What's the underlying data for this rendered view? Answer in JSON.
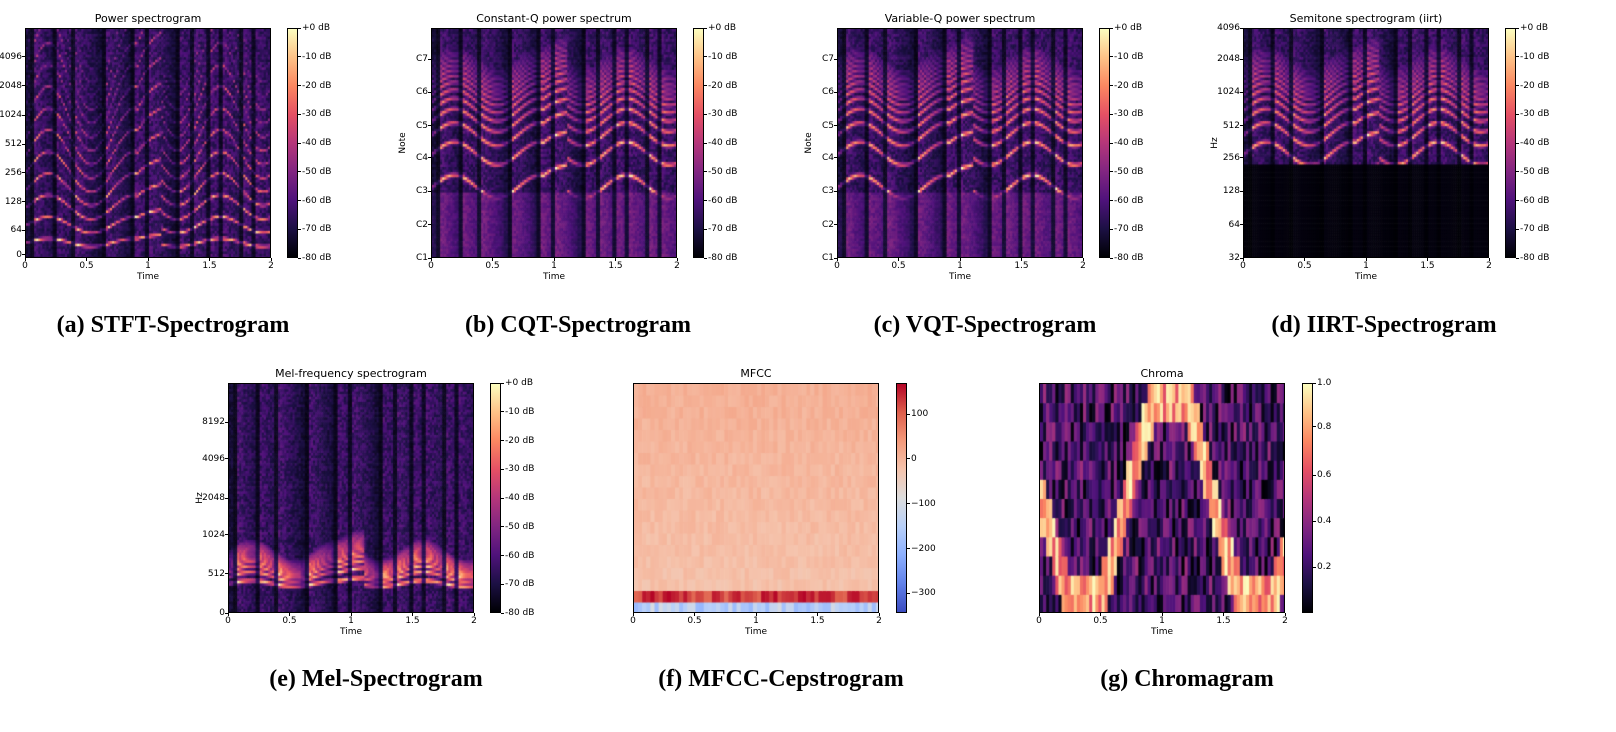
{
  "chart_data": [
    {
      "id": "a",
      "type": "heatmap",
      "title": "Power spectrogram",
      "xlabel": "Time",
      "ylabel": "",
      "xticks": [
        "0",
        "0.5",
        "1",
        "1.5",
        "2"
      ],
      "yticks": [
        "0",
        "64",
        "128",
        "256",
        "512",
        "1024",
        "2048",
        "4096"
      ],
      "colorbar": {
        "colormap": "magma",
        "ticks": [
          "+0 dB",
          "-10 dB",
          "-20 dB",
          "-30 dB",
          "-40 dB",
          "-50 dB",
          "-60 dB",
          "-70 dB",
          "-80 dB"
        ]
      },
      "caption": "(a) STFT-Spectrogram"
    },
    {
      "id": "b",
      "type": "heatmap",
      "title": "Constant-Q power spectrum",
      "xlabel": "Time",
      "ylabel": "Note",
      "xticks": [
        "0",
        "0.5",
        "1",
        "1.5",
        "2"
      ],
      "yticks": [
        "C1",
        "C2",
        "C3",
        "C4",
        "C5",
        "C6",
        "C7"
      ],
      "colorbar": {
        "colormap": "magma",
        "ticks": [
          "+0 dB",
          "-10 dB",
          "-20 dB",
          "-30 dB",
          "-40 dB",
          "-50 dB",
          "-60 dB",
          "-70 dB",
          "-80 dB"
        ]
      },
      "caption": "(b) CQT-Spectrogram"
    },
    {
      "id": "c",
      "type": "heatmap",
      "title": "Variable-Q power spectrum",
      "xlabel": "Time",
      "ylabel": "Note",
      "xticks": [
        "0",
        "0.5",
        "1",
        "1.5",
        "2"
      ],
      "yticks": [
        "C1",
        "C2",
        "C3",
        "C4",
        "C5",
        "C6",
        "C7"
      ],
      "colorbar": {
        "colormap": "magma",
        "ticks": [
          "+0 dB",
          "-10 dB",
          "-20 dB",
          "-30 dB",
          "-40 dB",
          "-50 dB",
          "-60 dB",
          "-70 dB",
          "-80 dB"
        ]
      },
      "caption": "(c) VQT-Spectrogram"
    },
    {
      "id": "d",
      "type": "heatmap",
      "title": "Semitone spectrogram (iirt)",
      "xlabel": "Time",
      "ylabel": "Hz",
      "xticks": [
        "0",
        "0.5",
        "1",
        "1.5",
        "2"
      ],
      "yticks": [
        "32",
        "64",
        "128",
        "256",
        "512",
        "1024",
        "2048",
        "4096"
      ],
      "colorbar": {
        "colormap": "magma",
        "ticks": [
          "+0 dB",
          "-10 dB",
          "-20 dB",
          "-30 dB",
          "-40 dB",
          "-50 dB",
          "-60 dB",
          "-70 dB",
          "-80 dB"
        ]
      },
      "caption": "(d) IIRT-Spectrogram"
    },
    {
      "id": "e",
      "type": "heatmap",
      "title": "Mel-frequency spectrogram",
      "xlabel": "Time",
      "ylabel": "Hz",
      "xticks": [
        "0",
        "0.5",
        "1",
        "1.5",
        "2"
      ],
      "yticks": [
        "0",
        "512",
        "1024",
        "2048",
        "4096",
        "8192"
      ],
      "colorbar": {
        "colormap": "magma",
        "ticks": [
          "+0 dB",
          "-10 dB",
          "-20 dB",
          "-30 dB",
          "-40 dB",
          "-50 dB",
          "-60 dB",
          "-70 dB",
          "-80 dB"
        ]
      },
      "caption": "(e) Mel-Spectrogram"
    },
    {
      "id": "f",
      "type": "heatmap",
      "title": "MFCC",
      "xlabel": "Time",
      "ylabel": "",
      "xticks": [
        "0",
        "0.5",
        "1",
        "1.5",
        "2"
      ],
      "yticks": [],
      "colorbar": {
        "colormap": "coolwarm",
        "ticks": [
          "100",
          "0",
          "−100",
          "−200",
          "−300"
        ]
      },
      "caption": "(f) MFCC-Cepstrogram"
    },
    {
      "id": "g",
      "type": "heatmap",
      "title": "Chroma",
      "xlabel": "Time",
      "ylabel": "",
      "xticks": [
        "0",
        "0.5",
        "1",
        "1.5",
        "2"
      ],
      "yticks": [],
      "colorbar": {
        "colormap": "magma",
        "ticks": [
          "1.0",
          "0.8",
          "0.6",
          "0.4",
          "0.2"
        ]
      },
      "caption": "(g) Chromagram"
    }
  ]
}
